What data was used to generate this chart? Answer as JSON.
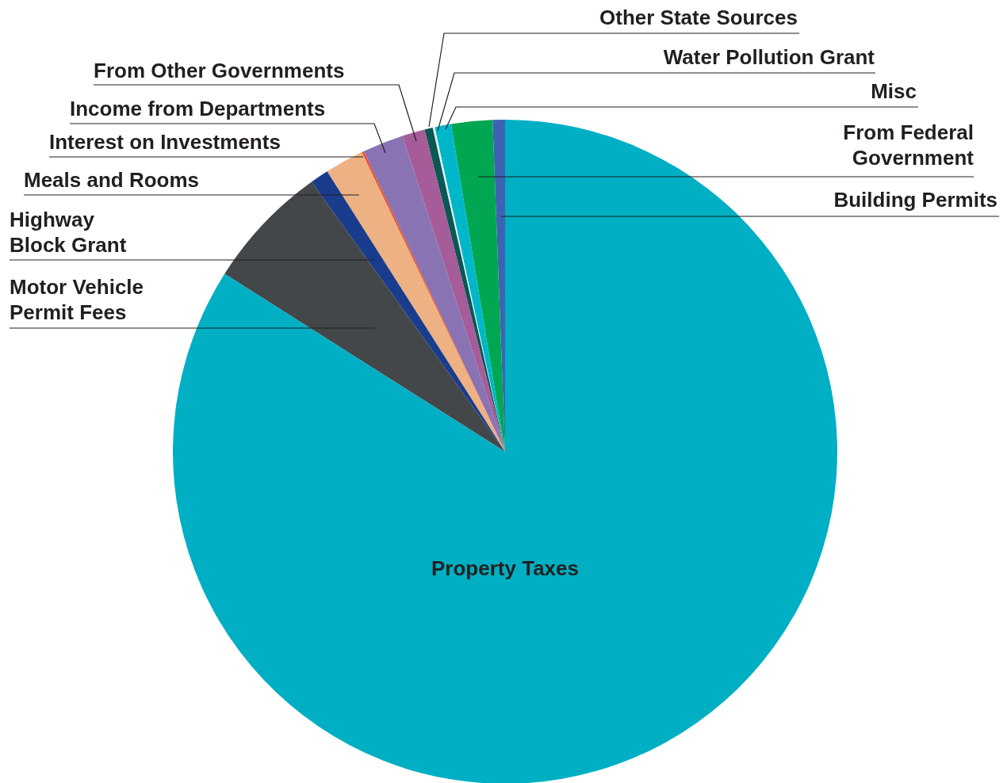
{
  "chart_data": {
    "type": "pie",
    "categories": [
      "Building Permits",
      "From Federal Government",
      "Misc",
      "Water Pollution Grant",
      "Other State Sources",
      "From Other Governments",
      "Income from Departments",
      "Interest on Investments",
      "Meals and Rooms",
      "Highway Block Grant",
      "Motor Vehicle Permit Fees",
      "Property Taxes"
    ],
    "values": [
      0.6,
      2.0,
      0.8,
      0.1,
      0.4,
      1.1,
      2.0,
      0.1,
      1.9,
      0.9,
      6.1,
      84.0
    ],
    "colors": [
      "#3d63b3",
      "#00a651",
      "#00b7c9",
      "#e6f7f8",
      "#0b5753",
      "#a65c98",
      "#8973b3",
      "#f04e23",
      "#edb183",
      "#1a3c8c",
      "#43474a",
      "#00afc3"
    ]
  }
}
